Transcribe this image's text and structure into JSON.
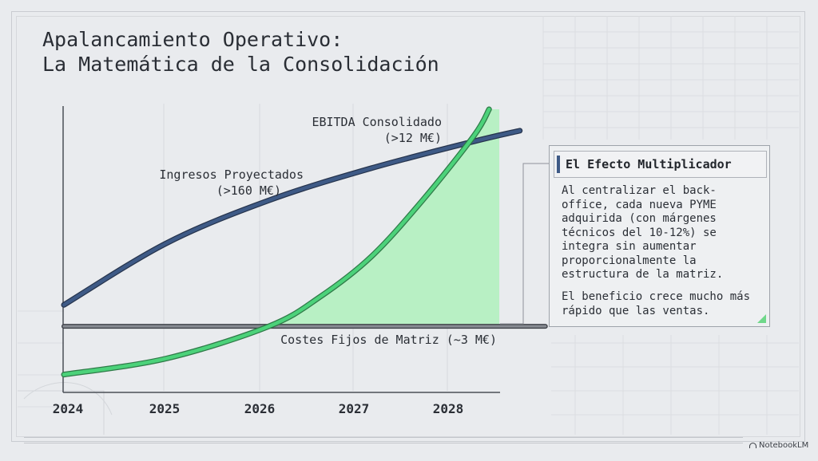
{
  "title_line1": "Apalancamiento Operativo:",
  "title_line2": "La Matemática de la Consolidación",
  "chart_data": {
    "type": "line",
    "x_ticks": [
      "2024",
      "2025",
      "2026",
      "2027",
      "2028"
    ],
    "x_range": [
      2024,
      2028.45
    ],
    "series": [
      {
        "name": "Ingresos Proyectados",
        "label_line1": "Ingresos Proyectados",
        "label_line2": "(>160 M€)",
        "color": "#3e5a86",
        "points": [
          [
            2024,
            0.27
          ],
          [
            2025,
            0.5
          ],
          [
            2026,
            0.66
          ],
          [
            2027,
            0.78
          ],
          [
            2028,
            0.88
          ],
          [
            2028.45,
            0.92
          ]
        ]
      },
      {
        "name": "EBITDA Consolidado",
        "label_line1": "EBITDA Consolidado",
        "label_line2": "(>12 M€)",
        "color": "#4cd27a",
        "fill": "#b8f0c4",
        "points": [
          [
            2024,
            0.01
          ],
          [
            2025,
            0.07
          ],
          [
            2026,
            0.19
          ],
          [
            2026.5,
            0.3
          ],
          [
            2027,
            0.45
          ],
          [
            2027.5,
            0.66
          ],
          [
            2028,
            0.9
          ],
          [
            2028.15,
            1.0
          ]
        ]
      },
      {
        "name": "Costes Fijos de Matriz (~3 M€)",
        "label_line1": "Costes Fijos de Matriz (~3 M€)",
        "color": "#5d6168",
        "points": [
          [
            2024,
            0.19
          ],
          [
            2028.45,
            0.19
          ]
        ]
      }
    ],
    "fill_region_x": [
      2026,
      2028.25
    ]
  },
  "callout": {
    "title": "El Efecto Multiplicador",
    "body": "Al centralizar el back-office, cada nueva PYME adquirida (con márgenes técnicos del 10-12%) se integra sin aumentar proporcionalmente la estructura de la matriz.",
    "footer": "El beneficio crece mucho más rápido que las ventas."
  },
  "brand": "NotebookLM"
}
